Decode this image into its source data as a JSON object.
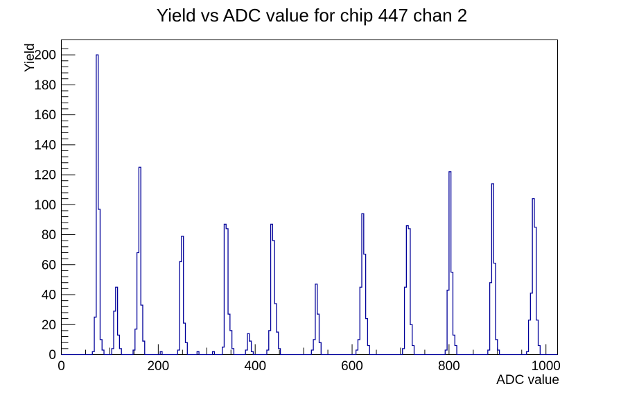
{
  "title": "Yield vs ADC value for chip 447 chan 2",
  "chart_data": {
    "type": "bar",
    "title": "Yield vs ADC value for chip 447 chan 2",
    "xlabel": "ADC value",
    "ylabel": "Yield",
    "xlim": [
      0,
      1024
    ],
    "ylim": [
      0,
      210
    ],
    "grid": false,
    "legend": "none",
    "line_color": "#000099",
    "frame_color": "#000000",
    "background_color": "#ffffff",
    "bin_width": 4,
    "x_tick_values": [
      0,
      200,
      400,
      600,
      800,
      1000
    ],
    "x_tick_labels": [
      "0",
      "200",
      "400",
      "600",
      "800",
      "1000"
    ],
    "x_minor_tick_step": 50,
    "y_tick_values": [
      0,
      20,
      40,
      60,
      80,
      100,
      120,
      140,
      160,
      180,
      200
    ],
    "y_tick_labels": [
      "0",
      "20",
      "40",
      "60",
      "80",
      "100",
      "120",
      "140",
      "160",
      "180",
      "200"
    ],
    "y_minor_tick_step": 4,
    "peaks": [
      {
        "adc": 74,
        "yield": 200
      },
      {
        "adc": 114,
        "yield": 45
      },
      {
        "adc": 162,
        "yield": 125
      },
      {
        "adc": 250,
        "yield": 79
      },
      {
        "adc": 338,
        "yield": 87
      },
      {
        "adc": 386,
        "yield": 14
      },
      {
        "adc": 434,
        "yield": 87
      },
      {
        "adc": 526,
        "yield": 47
      },
      {
        "adc": 622,
        "yield": 94
      },
      {
        "adc": 714,
        "yield": 86
      },
      {
        "adc": 802,
        "yield": 122
      },
      {
        "adc": 890,
        "yield": 114
      },
      {
        "adc": 974,
        "yield": 104
      }
    ],
    "bins": [
      [
        64,
        2
      ],
      [
        68,
        25
      ],
      [
        72,
        200
      ],
      [
        76,
        97
      ],
      [
        80,
        10
      ],
      [
        84,
        3
      ],
      [
        104,
        4
      ],
      [
        108,
        29
      ],
      [
        112,
        45
      ],
      [
        116,
        13
      ],
      [
        120,
        4
      ],
      [
        148,
        3
      ],
      [
        152,
        17
      ],
      [
        156,
        68
      ],
      [
        160,
        125
      ],
      [
        164,
        33
      ],
      [
        168,
        9
      ],
      [
        204,
        2
      ],
      [
        240,
        3
      ],
      [
        244,
        62
      ],
      [
        248,
        79
      ],
      [
        252,
        21
      ],
      [
        256,
        8
      ],
      [
        280,
        2
      ],
      [
        312,
        2
      ],
      [
        332,
        5
      ],
      [
        336,
        87
      ],
      [
        340,
        84
      ],
      [
        344,
        27
      ],
      [
        348,
        16
      ],
      [
        352,
        4
      ],
      [
        380,
        3
      ],
      [
        384,
        14
      ],
      [
        388,
        9
      ],
      [
        392,
        2
      ],
      [
        424,
        3
      ],
      [
        428,
        16
      ],
      [
        432,
        87
      ],
      [
        436,
        76
      ],
      [
        440,
        34
      ],
      [
        444,
        15
      ],
      [
        448,
        4
      ],
      [
        516,
        3
      ],
      [
        520,
        10
      ],
      [
        524,
        47
      ],
      [
        528,
        27
      ],
      [
        532,
        8
      ],
      [
        608,
        3
      ],
      [
        612,
        10
      ],
      [
        616,
        45
      ],
      [
        620,
        94
      ],
      [
        624,
        67
      ],
      [
        628,
        24
      ],
      [
        632,
        6
      ],
      [
        704,
        4
      ],
      [
        708,
        45
      ],
      [
        712,
        86
      ],
      [
        716,
        84
      ],
      [
        720,
        20
      ],
      [
        724,
        6
      ],
      [
        792,
        3
      ],
      [
        796,
        43
      ],
      [
        800,
        122
      ],
      [
        804,
        55
      ],
      [
        808,
        13
      ],
      [
        812,
        6
      ],
      [
        880,
        3
      ],
      [
        884,
        48
      ],
      [
        888,
        114
      ],
      [
        892,
        61
      ],
      [
        896,
        10
      ],
      [
        900,
        3
      ],
      [
        960,
        2
      ],
      [
        964,
        23
      ],
      [
        968,
        41
      ],
      [
        972,
        104
      ],
      [
        976,
        85
      ],
      [
        980,
        23
      ],
      [
        984,
        6
      ]
    ]
  }
}
